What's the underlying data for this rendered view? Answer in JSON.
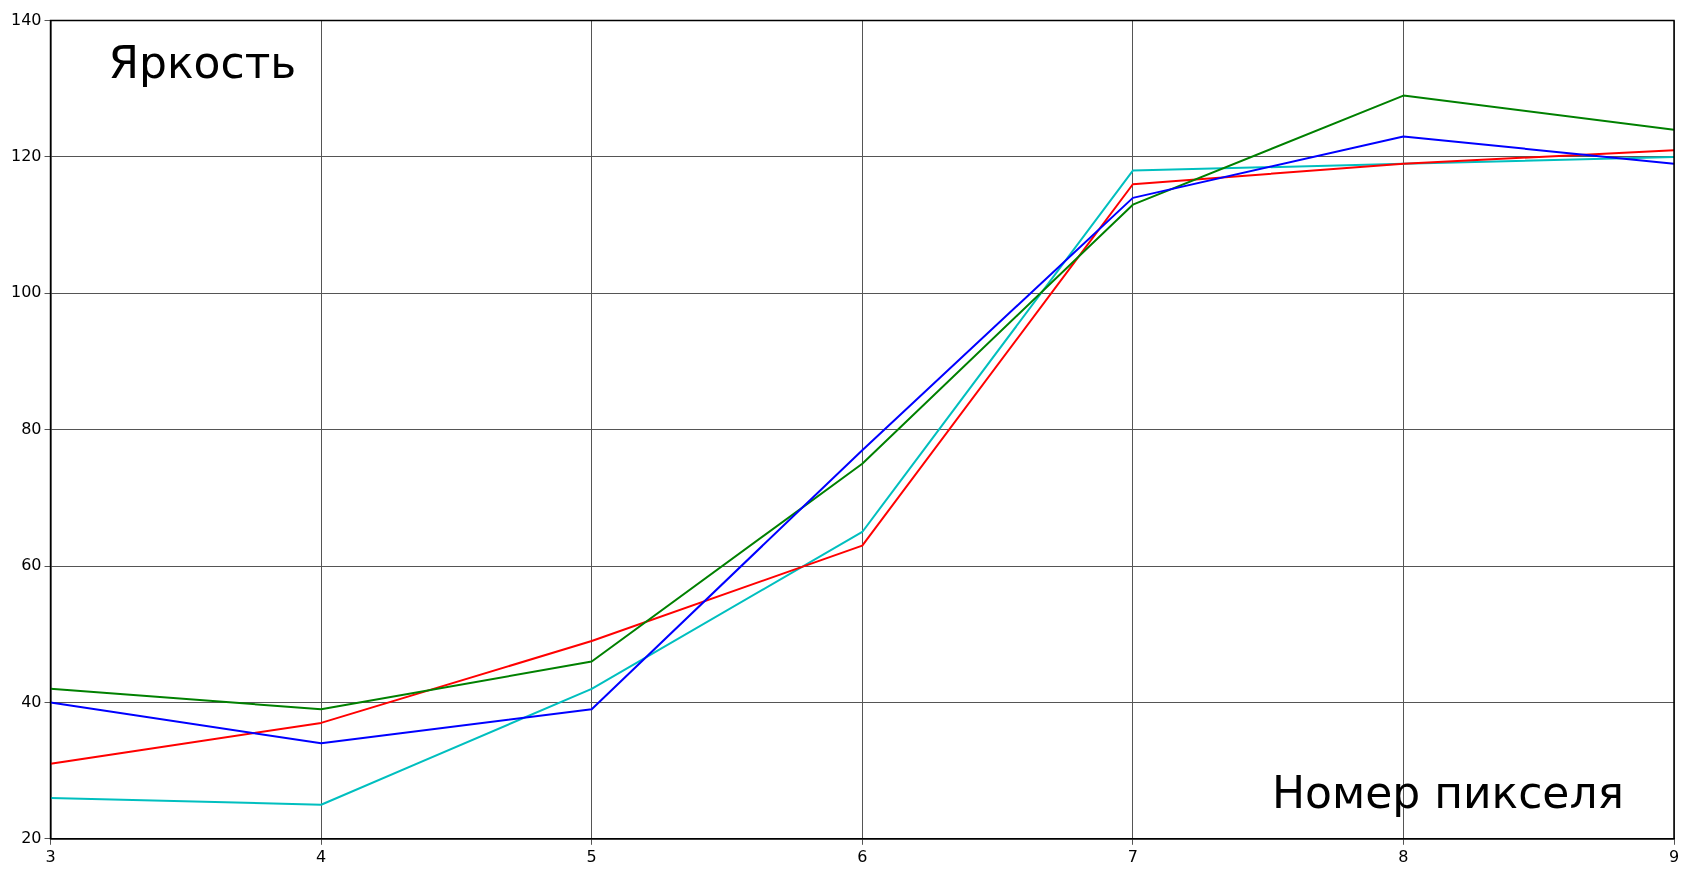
{
  "chart_data": {
    "type": "line",
    "xlabel": "Номер пикселя",
    "ylabel": "Яркость",
    "x": [
      3,
      4,
      5,
      6,
      7,
      8,
      9
    ],
    "series": [
      {
        "color": "#0000ff",
        "values": [
          40,
          34,
          39,
          77,
          114,
          123,
          119
        ]
      },
      {
        "color": "#008000",
        "values": [
          42,
          39,
          46,
          75,
          113,
          129,
          124
        ]
      },
      {
        "color": "#ff0000",
        "values": [
          31,
          37,
          49,
          63,
          116,
          119,
          121
        ]
      },
      {
        "color": "#00bfbf",
        "values": [
          26,
          25,
          42,
          65,
          118,
          119,
          120
        ]
      }
    ],
    "xlim": [
      3,
      9
    ],
    "xticks": [
      3,
      4,
      5,
      6,
      7,
      8,
      9
    ],
    "ylim": [
      20,
      140
    ],
    "yticks": [
      20,
      40,
      60,
      80,
      100,
      120,
      140
    ],
    "grid": true,
    "legend": false,
    "marker": "none",
    "line_style": "solid"
  }
}
